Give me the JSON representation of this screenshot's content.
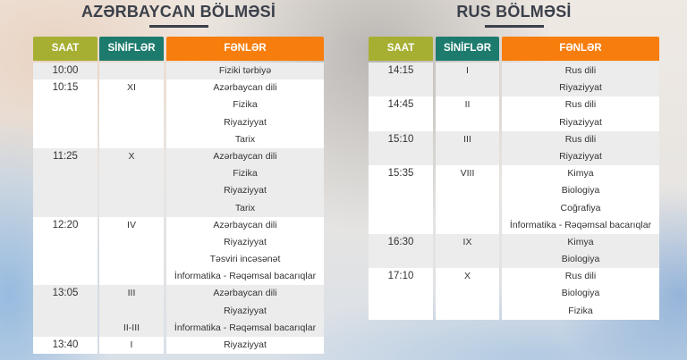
{
  "colors": {
    "saat": "#a7af33",
    "sinifler": "#1d7b6d",
    "fenler": "#f77d0c"
  },
  "headers": {
    "saat": "SAAT",
    "sinifler": "SİNİFLƏR",
    "fenler": "FƏNLƏR"
  },
  "sections": [
    {
      "title": "AZƏRBAYCAN BÖLMƏSİ",
      "groups": [
        {
          "time": "10:00",
          "classes": [
            ""
          ],
          "subjects": [
            "Fiziki tərbiyə"
          ]
        },
        {
          "time": "10:15",
          "classes": [
            "XI",
            "",
            "",
            ""
          ],
          "subjects": [
            "Azərbaycan dili",
            "Fizika",
            "Riyaziyyat",
            "Tarix"
          ]
        },
        {
          "time": "11:25",
          "classes": [
            "X",
            "",
            "",
            ""
          ],
          "subjects": [
            "Azərbaycan dili",
            "Fizika",
            "Riyaziyyat",
            "Tarix"
          ]
        },
        {
          "time": "12:20",
          "classes": [
            "IV",
            "",
            "",
            ""
          ],
          "subjects": [
            "Azərbaycan dili",
            "Riyaziyyat",
            "Təsviri incəsənət",
            "İnformatika - Rəqəmsal bacarıqlar"
          ]
        },
        {
          "time": "13:05",
          "classes": [
            "III",
            "",
            "II-III"
          ],
          "subjects": [
            "Azərbaycan dili",
            "Riyaziyyat",
            "İnformatika - Rəqəmsal bacarıqlar"
          ]
        },
        {
          "time": "13:40",
          "classes": [
            "I"
          ],
          "subjects": [
            "Riyaziyyat"
          ]
        }
      ]
    },
    {
      "title": "RUS BÖLMƏSİ",
      "groups": [
        {
          "time": "14:15",
          "classes": [
            "I",
            ""
          ],
          "subjects": [
            "Rus dili",
            "Riyaziyyat"
          ]
        },
        {
          "time": "14:45",
          "classes": [
            "II",
            ""
          ],
          "subjects": [
            "Rus dili",
            "Riyaziyyat"
          ]
        },
        {
          "time": "15:10",
          "classes": [
            "III",
            ""
          ],
          "subjects": [
            "Rus dili",
            "Riyaziyyat"
          ]
        },
        {
          "time": "15:35",
          "classes": [
            "VIII",
            "",
            "",
            ""
          ],
          "subjects": [
            "Kimya",
            "Biologiya",
            "Coğrafiya",
            "İnformatika - Rəqəmsal bacarıqlar"
          ]
        },
        {
          "time": "16:30",
          "classes": [
            "IX",
            ""
          ],
          "subjects": [
            "Kimya",
            "Biologiya"
          ]
        },
        {
          "time": "17:10",
          "classes": [
            "X",
            "",
            ""
          ],
          "subjects": [
            "Rus dili",
            "Biologiya",
            "Fizika"
          ]
        }
      ]
    }
  ]
}
